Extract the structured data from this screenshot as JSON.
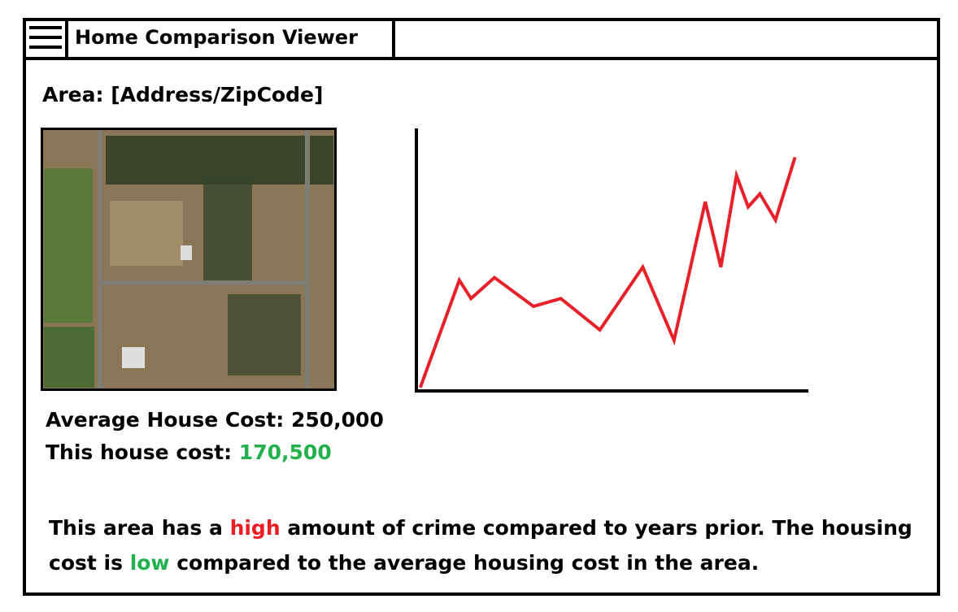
{
  "header": {
    "title": "Home Comparison Viewer"
  },
  "area": {
    "label": "Area:",
    "value": "[Address/ZipCode]"
  },
  "costs": {
    "average_label": "Average House Cost:",
    "average_value": "250,000",
    "house_label": "This house cost:",
    "house_value": "170,500"
  },
  "summary": {
    "part1": "This area has a ",
    "crime_level": "high",
    "part2": " amount of crime compared to years prior. The housing cost is ",
    "cost_level": "low",
    "part3": " compared to the average housing cost in the area."
  },
  "chart_data": {
    "type": "line",
    "color": "#e8202a",
    "x": [
      1,
      11,
      14,
      20,
      30,
      37,
      47,
      58,
      66,
      74,
      78,
      82,
      85,
      88,
      92,
      97
    ],
    "values": [
      1,
      42,
      35,
      43,
      32,
      35,
      23,
      47,
      19,
      72,
      47,
      82,
      70,
      75,
      65,
      89
    ],
    "xlim": [
      0,
      100
    ],
    "ylim": [
      0,
      100
    ]
  }
}
